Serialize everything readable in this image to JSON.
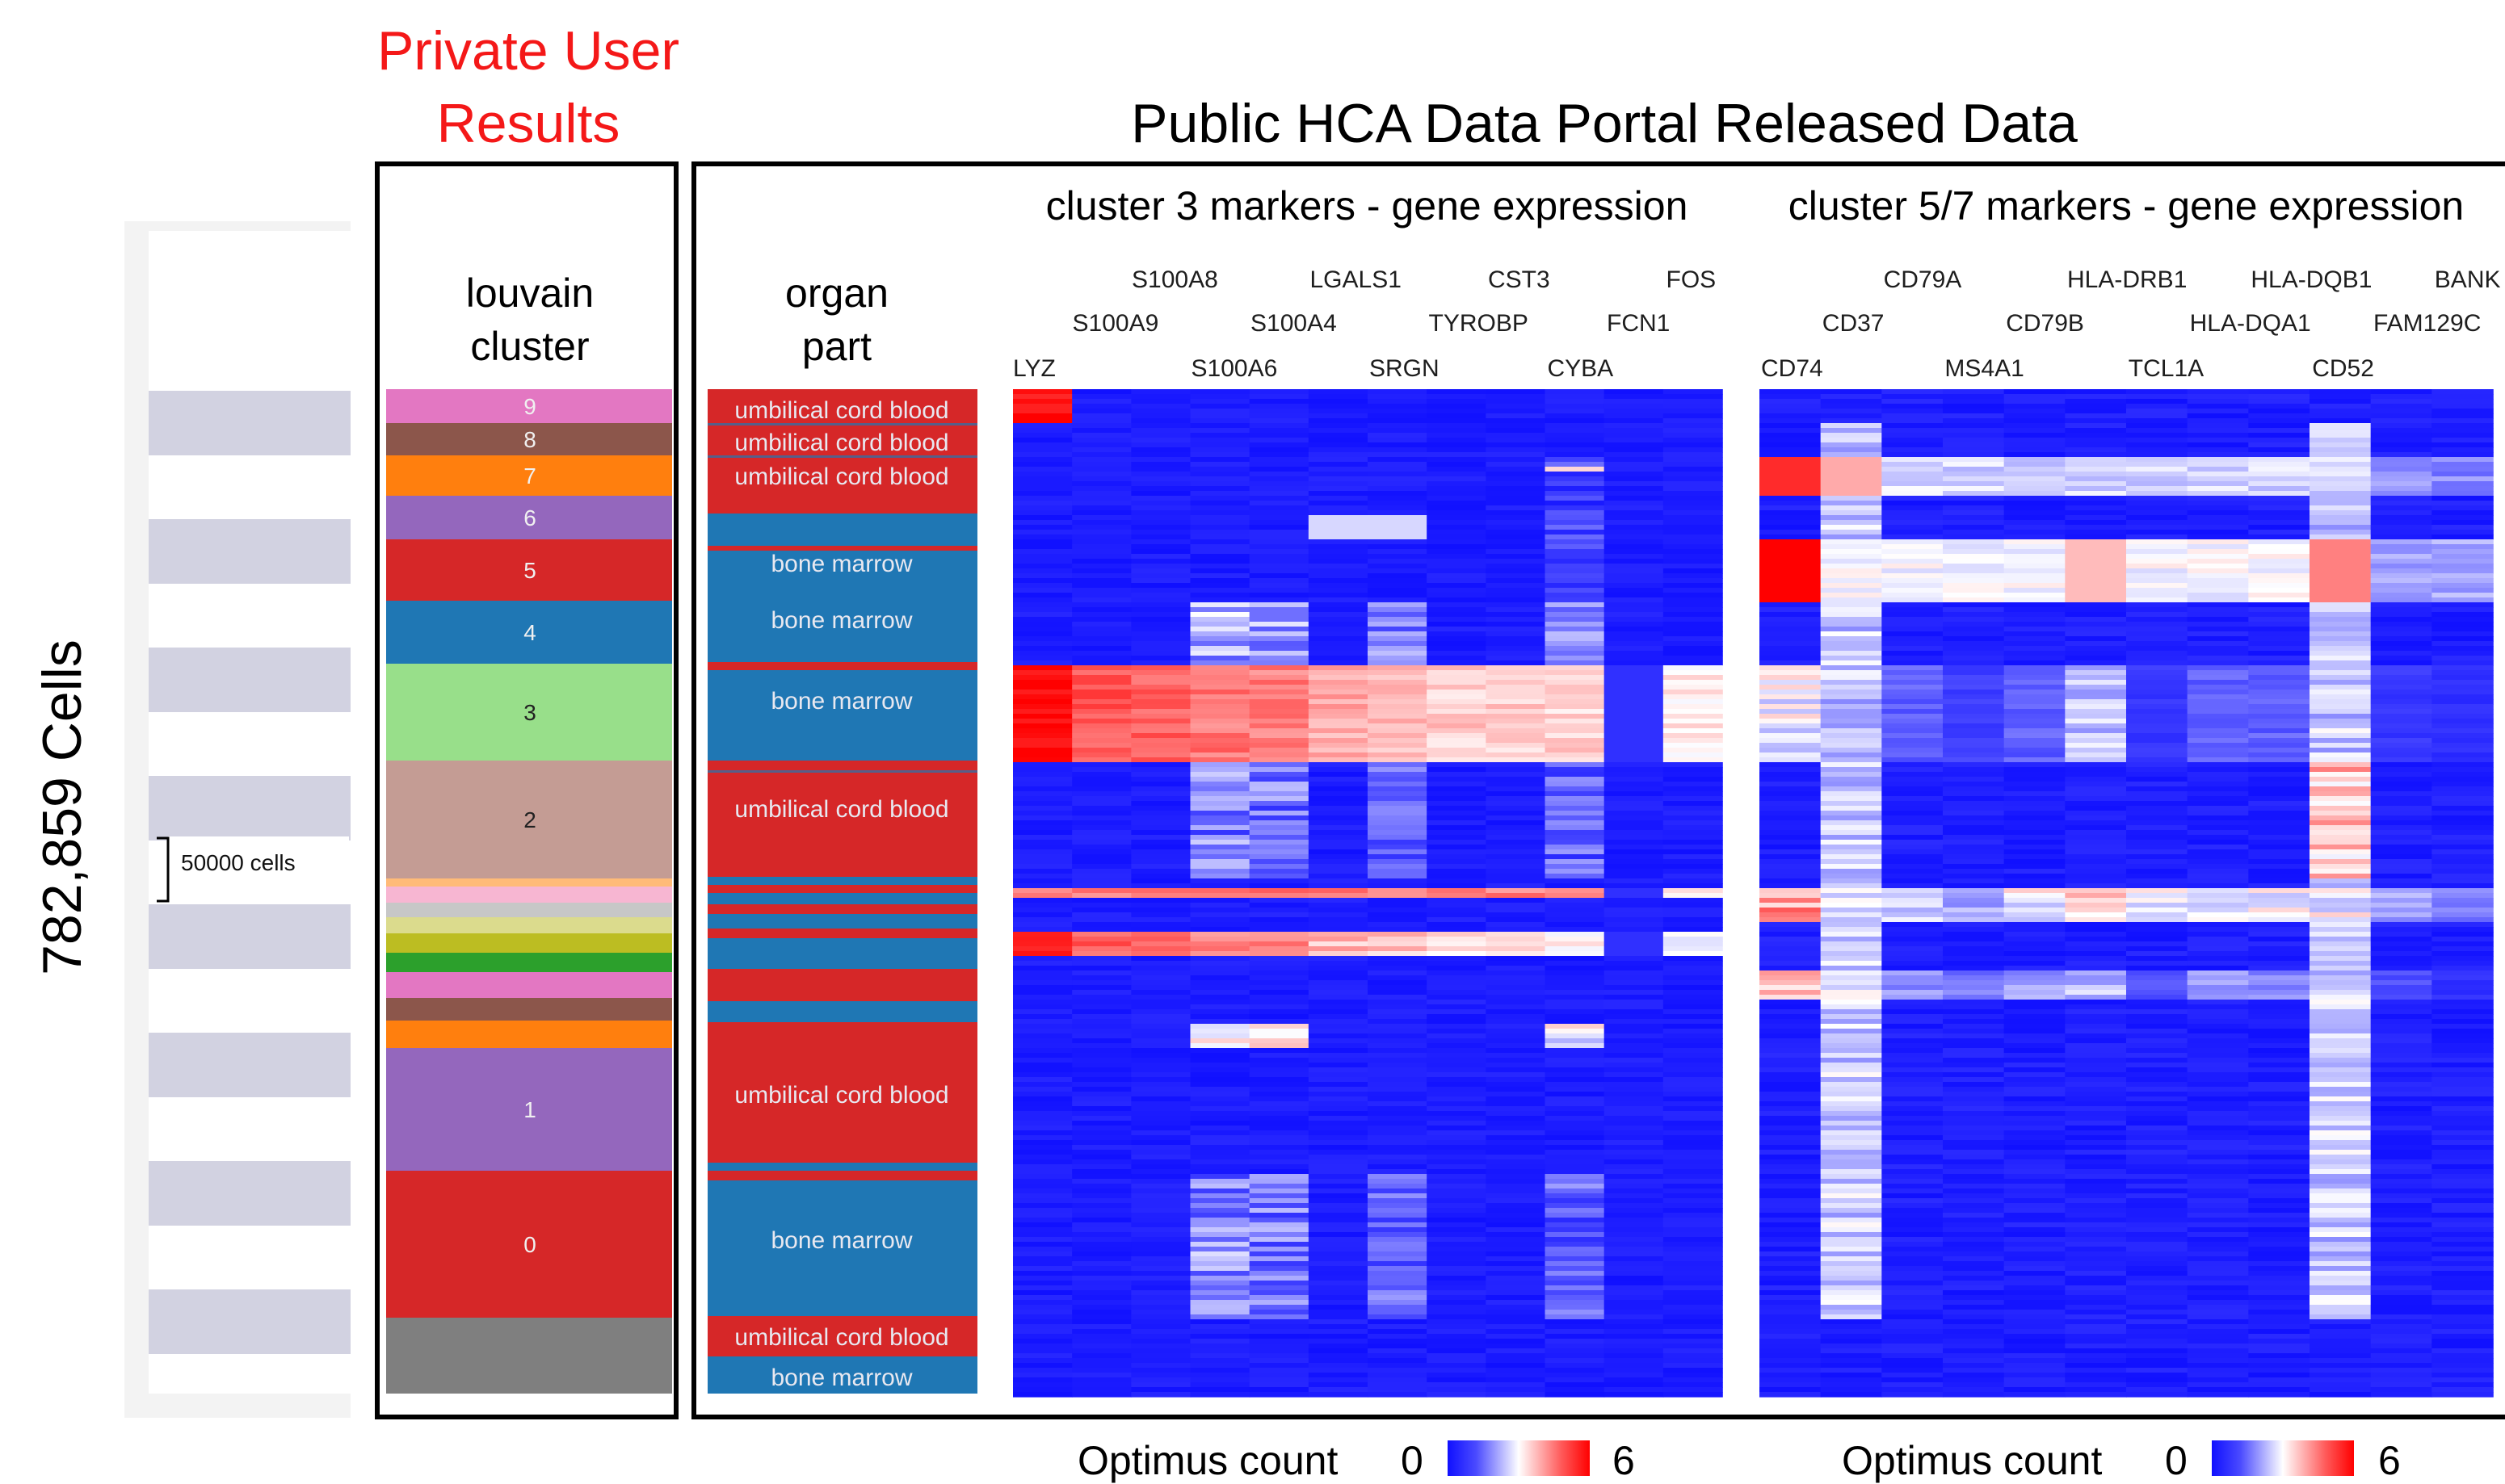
{
  "titles": {
    "private": "Private User Results",
    "public": "Public HCA Data Portal Released Data",
    "cells": "782,859 Cells"
  },
  "scale_bar": "50000 cells",
  "colors": {
    "highlight_red": "#f41818",
    "stripe": "#d2d2e1",
    "heat_low": "#1010ff",
    "heat_mid": "#ffffff",
    "heat_high": "#ff0000",
    "organ_blue": "#1f77b4",
    "organ_red": "#d62728"
  },
  "chart_data": [
    {
      "type": "heatmap",
      "title": "louvain cluster",
      "columns": [
        "louvain cluster"
      ],
      "rows_top_to_bottom": [
        {
          "label": "9",
          "color": "#e377c2"
        },
        {
          "label": "8",
          "color": "#8c564b"
        },
        {
          "label": "7",
          "color": "#ff7f0e"
        },
        {
          "label": "6",
          "color": "#9467bd"
        },
        {
          "label": "5",
          "color": "#d62728"
        },
        {
          "label": "4",
          "color": "#1f77b4"
        },
        {
          "label": "3",
          "color": "#98df8a"
        },
        {
          "label": "2",
          "color": "#c49c94"
        },
        {
          "label": "",
          "color": "#ffbb78"
        },
        {
          "label": "",
          "color": "#f7b6d2"
        },
        {
          "label": "",
          "color": "#c7c7c7"
        },
        {
          "label": "",
          "color": "#dbdb8d"
        },
        {
          "label": "",
          "color": "#bcbd22"
        },
        {
          "label": "",
          "color": "#2ca02c"
        },
        {
          "label": "",
          "color": "#e377c2"
        },
        {
          "label": "",
          "color": "#8c564b"
        },
        {
          "label": "",
          "color": "#ff7f0e"
        },
        {
          "label": "1",
          "color": "#9467bd"
        },
        {
          "label": "0",
          "color": "#d62728"
        },
        {
          "label": "",
          "color": "#7f7f7f"
        }
      ]
    },
    {
      "type": "heatmap",
      "title": "organ part",
      "columns": [
        "organ part"
      ],
      "categories": [
        "umbilical cord blood",
        "bone marrow"
      ],
      "labels_top_to_bottom": [
        "umbilical cord blood",
        "umbilical cord blood",
        "umbilical cord blood",
        "bone marrow",
        "bone marrow",
        "bone marrow",
        "umbilical cord blood",
        "umbilical cord blood",
        "bone marrow",
        "umbilical cord blood",
        "bone marrow"
      ]
    },
    {
      "type": "heatmap",
      "title": "cluster 3 markers - gene expression",
      "columns": [
        "LYZ",
        "S100A9",
        "S100A8",
        "S100A6",
        "S100A4",
        "LGALS1",
        "SRGN",
        "TYROBP",
        "CST3",
        "CYBA",
        "FCN1",
        "FOS"
      ],
      "zlabel": "Optimus count",
      "zlim": [
        0,
        6
      ]
    },
    {
      "type": "heatmap",
      "title": "cluster 5/7 markers - gene expression",
      "columns": [
        "CD74",
        "CD37",
        "CD79A",
        "MS4A1",
        "CD79B",
        "HLA-DRB1",
        "TCL1A",
        "HLA-DQA1",
        "HLA-DQB1",
        "CD52",
        "FAM129C",
        "BANK"
      ],
      "zlabel": "Optimus count",
      "zlim": [
        0,
        6
      ]
    }
  ],
  "legend": {
    "label": "Optimus count",
    "min": "0",
    "max": "6"
  }
}
